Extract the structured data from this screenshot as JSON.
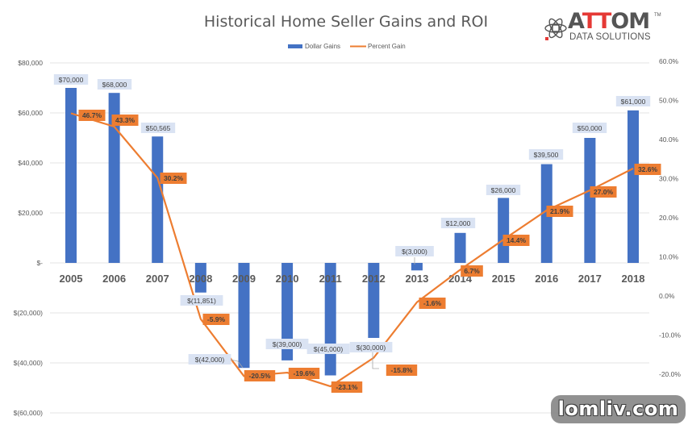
{
  "chart_data": {
    "type": "bar+line",
    "title": "Historical Home Seller Gains and ROI",
    "categories": [
      "2005",
      "2006",
      "2007",
      "2008",
      "2009",
      "2010",
      "2011",
      "2012",
      "2013",
      "2014",
      "2015",
      "2016",
      "2017",
      "2018"
    ],
    "series": [
      {
        "name": "Dollar Gains",
        "type": "bar",
        "axis": "left",
        "color": "#4472C4",
        "values": [
          70000,
          68000,
          50565,
          -11851,
          -42000,
          -39000,
          -45000,
          -30000,
          -3000,
          12000,
          26000,
          39500,
          50000,
          61000
        ],
        "labels": [
          "$70,000",
          "$68,000",
          "$50,565",
          "$(11,851)",
          "$(42,000)",
          "$(39,000)",
          "$(45,000)",
          "$(30,000)",
          "$(3,000)",
          "$12,000",
          "$26,000",
          "$39,500",
          "$50,000",
          "$61,000"
        ]
      },
      {
        "name": "Percent Gain",
        "type": "line",
        "axis": "right",
        "color": "#ED7D31",
        "values": [
          46.7,
          43.3,
          30.2,
          -5.9,
          -20.5,
          -19.6,
          -23.1,
          -15.8,
          -1.6,
          6.7,
          14.4,
          21.9,
          27.0,
          32.6
        ],
        "labels": [
          "46.7%",
          "43.3%",
          "30.2%",
          "-5.9%",
          "-20.5%",
          "-19.6%",
          "-23.1%",
          "-15.8%",
          "-1.6%",
          "6.7%",
          "14.4%",
          "21.9%",
          "27.0%",
          "32.6%"
        ]
      }
    ],
    "left_axis": {
      "ylim": [
        -60000,
        80000
      ],
      "ticks": [
        "$80,000",
        "$60,000",
        "$40,000",
        "$20,000",
        "$-",
        "$(20,000)",
        "$(40,000)",
        "$(60,000)"
      ]
    },
    "right_axis": {
      "ylim": [
        -20,
        60
      ],
      "ticks": [
        "60.0%",
        "50.0%",
        "40.0%",
        "30.0%",
        "20.0%",
        "10.0%",
        "0.0%",
        "-10.0%",
        "-20.0%"
      ]
    },
    "legend_position": "top",
    "grid": true
  },
  "legend": {
    "bar_label": "Dollar Gains",
    "line_label": "Percent Gain"
  },
  "logo": {
    "brand_a": "A",
    "brand_tt": "TT",
    "brand_om": "OM",
    "subtitle": "DATA SOLUTIONS",
    "tm": "TM"
  },
  "watermark": {
    "text": "lomliv.com"
  }
}
